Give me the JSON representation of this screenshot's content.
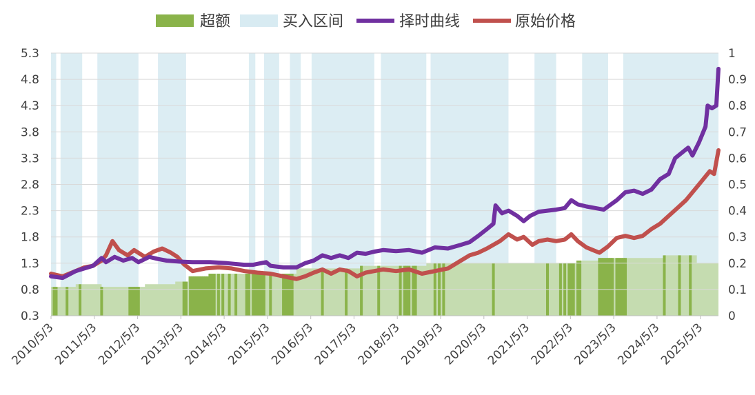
{
  "chart_data": {
    "type": "line",
    "title": "",
    "legend_position": "top",
    "legend": [
      {
        "key": "excess",
        "label": "超额",
        "kind": "area",
        "color": "#8ab34a"
      },
      {
        "key": "buy",
        "label": "买入区间",
        "kind": "area",
        "color": "#d8ebf2"
      },
      {
        "key": "timing",
        "label": "择时曲线",
        "kind": "line",
        "color": "#7030a0"
      },
      {
        "key": "price",
        "label": "原始价格",
        "kind": "line",
        "color": "#c0504d"
      }
    ],
    "x_labels": [
      "2010/5/3",
      "2011/5/3",
      "2012/5/3",
      "2013/5/3",
      "2014/5/3",
      "2015/5/3",
      "2016/5/3",
      "2017/5/3",
      "2018/5/3",
      "2019/5/3",
      "2020/5/3",
      "2021/5/3",
      "2022/5/3",
      "2023/5/3",
      "2024/5/3",
      "2025/5/3"
    ],
    "x_range": [
      2010.33,
      2025.75
    ],
    "y_left": {
      "ticks": [
        "0.3",
        "0.8",
        "1.3",
        "1.8",
        "2.3",
        "2.8",
        "3.3",
        "3.8",
        "4.3",
        "4.8",
        "5.3"
      ],
      "range": [
        0.3,
        5.3
      ]
    },
    "y_right": {
      "ticks": [
        "0",
        "0.1",
        "0.2",
        "0.3",
        "0.4",
        "0.5",
        "0.6",
        "0.7",
        "0.8",
        "0.9",
        "1"
      ],
      "range": [
        0,
        1
      ]
    },
    "series": [
      {
        "key": "timing",
        "name": "择时曲线",
        "axis": "left",
        "points": [
          [
            2010.33,
            1.05
          ],
          [
            2010.6,
            1.02
          ],
          [
            2010.9,
            1.15
          ],
          [
            2011.1,
            1.2
          ],
          [
            2011.3,
            1.25
          ],
          [
            2011.5,
            1.4
          ],
          [
            2011.6,
            1.32
          ],
          [
            2011.8,
            1.42
          ],
          [
            2012.0,
            1.35
          ],
          [
            2012.2,
            1.4
          ],
          [
            2012.35,
            1.32
          ],
          [
            2012.6,
            1.42
          ],
          [
            2012.8,
            1.38
          ],
          [
            2013.0,
            1.35
          ],
          [
            2013.3,
            1.33
          ],
          [
            2013.6,
            1.32
          ],
          [
            2014.0,
            1.32
          ],
          [
            2014.4,
            1.3
          ],
          [
            2014.8,
            1.27
          ],
          [
            2015.0,
            1.27
          ],
          [
            2015.3,
            1.32
          ],
          [
            2015.4,
            1.25
          ],
          [
            2015.7,
            1.22
          ],
          [
            2016.0,
            1.22
          ],
          [
            2016.2,
            1.3
          ],
          [
            2016.4,
            1.35
          ],
          [
            2016.6,
            1.45
          ],
          [
            2016.8,
            1.4
          ],
          [
            2017.0,
            1.45
          ],
          [
            2017.2,
            1.4
          ],
          [
            2017.4,
            1.5
          ],
          [
            2017.6,
            1.48
          ],
          [
            2017.8,
            1.52
          ],
          [
            2018.0,
            1.55
          ],
          [
            2018.3,
            1.53
          ],
          [
            2018.6,
            1.55
          ],
          [
            2018.9,
            1.5
          ],
          [
            2019.2,
            1.6
          ],
          [
            2019.5,
            1.58
          ],
          [
            2019.8,
            1.65
          ],
          [
            2020.0,
            1.7
          ],
          [
            2020.2,
            1.82
          ],
          [
            2020.4,
            1.95
          ],
          [
            2020.55,
            2.05
          ],
          [
            2020.6,
            2.4
          ],
          [
            2020.75,
            2.25
          ],
          [
            2020.9,
            2.3
          ],
          [
            2021.1,
            2.2
          ],
          [
            2021.25,
            2.1
          ],
          [
            2021.4,
            2.2
          ],
          [
            2021.6,
            2.28
          ],
          [
            2021.8,
            2.3
          ],
          [
            2022.0,
            2.32
          ],
          [
            2022.2,
            2.35
          ],
          [
            2022.35,
            2.5
          ],
          [
            2022.5,
            2.42
          ],
          [
            2022.7,
            2.38
          ],
          [
            2022.9,
            2.35
          ],
          [
            2023.1,
            2.32
          ],
          [
            2023.2,
            2.38
          ],
          [
            2023.4,
            2.5
          ],
          [
            2023.6,
            2.65
          ],
          [
            2023.8,
            2.68
          ],
          [
            2024.0,
            2.62
          ],
          [
            2024.2,
            2.7
          ],
          [
            2024.4,
            2.9
          ],
          [
            2024.6,
            3.0
          ],
          [
            2024.75,
            3.3
          ],
          [
            2024.9,
            3.4
          ],
          [
            2025.05,
            3.5
          ],
          [
            2025.15,
            3.35
          ],
          [
            2025.3,
            3.6
          ],
          [
            2025.45,
            3.9
          ],
          [
            2025.5,
            4.3
          ],
          [
            2025.6,
            4.25
          ],
          [
            2025.7,
            4.3
          ],
          [
            2025.75,
            5.0
          ]
        ]
      },
      {
        "key": "price",
        "name": "原始价格",
        "axis": "left",
        "points": [
          [
            2010.33,
            1.1
          ],
          [
            2010.6,
            1.05
          ],
          [
            2010.9,
            1.15
          ],
          [
            2011.1,
            1.22
          ],
          [
            2011.3,
            1.25
          ],
          [
            2011.5,
            1.35
          ],
          [
            2011.6,
            1.45
          ],
          [
            2011.75,
            1.72
          ],
          [
            2011.9,
            1.55
          ],
          [
            2012.1,
            1.45
          ],
          [
            2012.25,
            1.55
          ],
          [
            2012.5,
            1.42
          ],
          [
            2012.7,
            1.52
          ],
          [
            2012.9,
            1.58
          ],
          [
            2013.1,
            1.5
          ],
          [
            2013.25,
            1.42
          ],
          [
            2013.4,
            1.28
          ],
          [
            2013.6,
            1.15
          ],
          [
            2013.9,
            1.2
          ],
          [
            2014.2,
            1.22
          ],
          [
            2014.5,
            1.2
          ],
          [
            2014.8,
            1.15
          ],
          [
            2015.1,
            1.12
          ],
          [
            2015.4,
            1.1
          ],
          [
            2015.7,
            1.05
          ],
          [
            2016.0,
            1.0
          ],
          [
            2016.2,
            1.05
          ],
          [
            2016.4,
            1.12
          ],
          [
            2016.6,
            1.18
          ],
          [
            2016.8,
            1.1
          ],
          [
            2017.0,
            1.18
          ],
          [
            2017.2,
            1.15
          ],
          [
            2017.4,
            1.05
          ],
          [
            2017.6,
            1.12
          ],
          [
            2017.8,
            1.15
          ],
          [
            2018.0,
            1.18
          ],
          [
            2018.3,
            1.15
          ],
          [
            2018.6,
            1.18
          ],
          [
            2018.9,
            1.1
          ],
          [
            2019.2,
            1.15
          ],
          [
            2019.5,
            1.2
          ],
          [
            2019.8,
            1.35
          ],
          [
            2020.0,
            1.45
          ],
          [
            2020.2,
            1.5
          ],
          [
            2020.4,
            1.58
          ],
          [
            2020.55,
            1.65
          ],
          [
            2020.7,
            1.72
          ],
          [
            2020.9,
            1.85
          ],
          [
            2021.1,
            1.75
          ],
          [
            2021.25,
            1.8
          ],
          [
            2021.45,
            1.65
          ],
          [
            2021.6,
            1.72
          ],
          [
            2021.8,
            1.75
          ],
          [
            2022.0,
            1.72
          ],
          [
            2022.2,
            1.75
          ],
          [
            2022.35,
            1.85
          ],
          [
            2022.5,
            1.72
          ],
          [
            2022.7,
            1.6
          ],
          [
            2022.85,
            1.55
          ],
          [
            2023.0,
            1.5
          ],
          [
            2023.2,
            1.62
          ],
          [
            2023.4,
            1.78
          ],
          [
            2023.6,
            1.82
          ],
          [
            2023.8,
            1.78
          ],
          [
            2024.0,
            1.82
          ],
          [
            2024.2,
            1.95
          ],
          [
            2024.4,
            2.05
          ],
          [
            2024.6,
            2.2
          ],
          [
            2024.8,
            2.35
          ],
          [
            2025.0,
            2.5
          ],
          [
            2025.2,
            2.7
          ],
          [
            2025.4,
            2.9
          ],
          [
            2025.55,
            3.05
          ],
          [
            2025.65,
            3.0
          ],
          [
            2025.75,
            3.45
          ]
        ]
      }
    ],
    "excess_steps": [
      [
        2010.33,
        0.11
      ],
      [
        2010.9,
        0.12
      ],
      [
        2011.5,
        0.11
      ],
      [
        2012.5,
        0.12
      ],
      [
        2013.2,
        0.13
      ],
      [
        2013.5,
        0.15
      ],
      [
        2014.0,
        0.16
      ],
      [
        2016.0,
        0.18
      ],
      [
        2017.5,
        0.19
      ],
      [
        2019.0,
        0.2
      ],
      [
        2022.5,
        0.21
      ],
      [
        2023.0,
        0.22
      ],
      [
        2024.0,
        0.22
      ],
      [
        2024.5,
        0.23
      ],
      [
        2025.25,
        0.2
      ],
      [
        2025.75,
        0.2
      ]
    ],
    "excess_spikes": [
      2010.4,
      2010.45,
      2010.7,
      2011.0,
      2011.5,
      2012.15,
      2012.2,
      2012.25,
      2012.28,
      2012.32,
      2012.35,
      2013.4,
      2013.45,
      2013.55,
      2013.6,
      2013.65,
      2013.7,
      2013.75,
      2013.8,
      2013.85,
      2013.9,
      2013.95,
      2014.0,
      2014.05,
      2014.1,
      2014.2,
      2014.3,
      2014.45,
      2014.6,
      2014.85,
      2014.9,
      2015.0,
      2015.05,
      2015.1,
      2015.15,
      2015.2,
      2015.25,
      2015.4,
      2015.7,
      2015.75,
      2015.8,
      2015.85,
      2015.9,
      2016.6,
      2017.15,
      2017.5,
      2017.9,
      2018.4,
      2018.5,
      2018.55,
      2018.6,
      2018.7,
      2018.75,
      2019.2,
      2019.3,
      2019.4,
      2020.55,
      2021.8,
      2022.1,
      2022.2,
      2022.3,
      2022.35,
      2022.4,
      2022.5,
      2022.55,
      2023.0,
      2023.05,
      2023.1,
      2023.15,
      2023.2,
      2023.25,
      2023.3,
      2023.4,
      2023.45,
      2023.5,
      2023.55,
      2023.6,
      2024.5,
      2024.85,
      2025.1
    ],
    "buy_ranges": [
      [
        2010.33,
        2010.45
      ],
      [
        2010.55,
        2011.05
      ],
      [
        2011.4,
        2012.35
      ],
      [
        2012.8,
        2013.45
      ],
      [
        2014.9,
        2015.05
      ],
      [
        2015.25,
        2015.6
      ],
      [
        2015.85,
        2016.1
      ],
      [
        2016.35,
        2017.8
      ],
      [
        2017.95,
        2019.0
      ],
      [
        2019.1,
        2020.9
      ],
      [
        2021.5,
        2022.0
      ],
      [
        2022.6,
        2023.2
      ],
      [
        2023.55,
        2025.75
      ]
    ]
  }
}
